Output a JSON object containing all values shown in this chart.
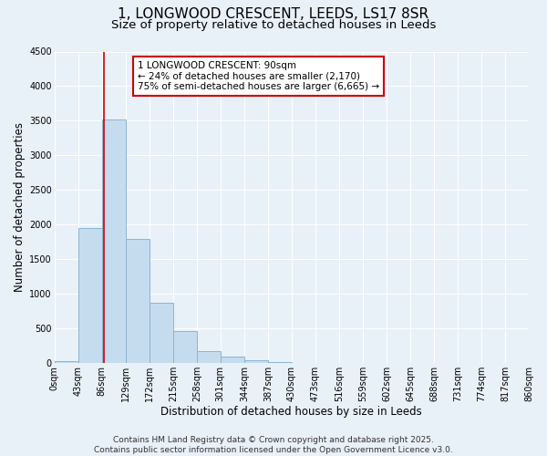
{
  "title": "1, LONGWOOD CRESCENT, LEEDS, LS17 8SR",
  "subtitle": "Size of property relative to detached houses in Leeds",
  "xlabel": "Distribution of detached houses by size in Leeds",
  "ylabel": "Number of detached properties",
  "bar_edges": [
    0,
    43,
    86,
    129,
    172,
    215,
    258,
    301,
    344,
    387,
    430,
    473,
    516,
    559,
    602,
    645,
    688,
    731,
    774,
    817,
    860
  ],
  "bar_heights": [
    30,
    1950,
    3520,
    1800,
    870,
    460,
    175,
    90,
    45,
    20,
    5,
    0,
    0,
    0,
    0,
    0,
    0,
    0,
    0,
    0
  ],
  "tick_labels": [
    "0sqm",
    "43sqm",
    "86sqm",
    "129sqm",
    "172sqm",
    "215sqm",
    "258sqm",
    "301sqm",
    "344sqm",
    "387sqm",
    "430sqm",
    "473sqm",
    "516sqm",
    "559sqm",
    "602sqm",
    "645sqm",
    "688sqm",
    "731sqm",
    "774sqm",
    "817sqm",
    "860sqm"
  ],
  "bar_color": "#c5dcef",
  "bar_edge_color": "#8cb4d2",
  "property_line_x": 90,
  "property_size": "90sqm",
  "pct_smaller": "24%",
  "count_smaller": "2,170",
  "pct_larger_semi": "75%",
  "count_larger_semi": "6,665",
  "annotation_box_color": "#cc0000",
  "vline_color": "#cc0000",
  "ylim": [
    0,
    4500
  ],
  "yticks": [
    0,
    500,
    1000,
    1500,
    2000,
    2500,
    3000,
    3500,
    4000,
    4500
  ],
  "background_color": "#e8f0f8",
  "plot_bg_color": "#e8f0f8",
  "grid_color": "#ffffff",
  "footer_line1": "Contains HM Land Registry data © Crown copyright and database right 2025.",
  "footer_line2": "Contains public sector information licensed under the Open Government Licence v3.0.",
  "title_fontsize": 11,
  "subtitle_fontsize": 9.5,
  "axis_label_fontsize": 8.5,
  "tick_fontsize": 7,
  "annotation_fontsize": 7.5,
  "footer_fontsize": 6.5
}
